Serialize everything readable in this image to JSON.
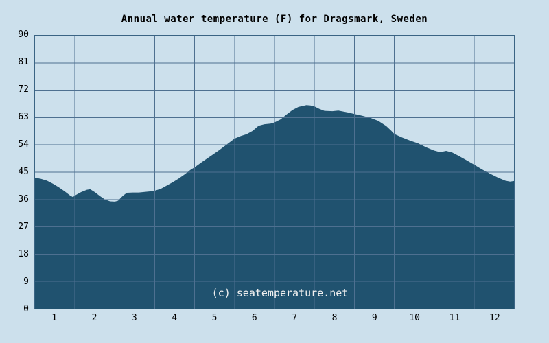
{
  "title": "Annual water temperature (F) for Dragsmark, Sweden",
  "watermark": "(c) seatemperature.net",
  "colors": {
    "background": "#cce0ec",
    "area_fill": "#20526f",
    "gridline": "#4e7090",
    "plot_border": "#3a6484",
    "text": "#000000",
    "watermark_text": "#f0f0f0"
  },
  "chart_data": {
    "type": "area",
    "title": "Annual water temperature (F) for Dragsmark, Sweden",
    "xlabel": "",
    "ylabel": "",
    "units": "F",
    "xlim": [
      0,
      12
    ],
    "ylim": [
      0,
      90
    ],
    "grid": true,
    "x_ticks": [
      1,
      2,
      3,
      4,
      5,
      6,
      7,
      8,
      9,
      10,
      11,
      12
    ],
    "y_ticks": [
      0,
      9,
      18,
      27,
      36,
      45,
      54,
      63,
      72,
      81,
      90
    ],
    "series_name": "Water temperature (F)",
    "points": [
      [
        0.0,
        43.2
      ],
      [
        0.15,
        42.8
      ],
      [
        0.3,
        42.2
      ],
      [
        0.45,
        41.2
      ],
      [
        0.6,
        40.0
      ],
      [
        0.75,
        38.6
      ],
      [
        0.88,
        37.3
      ],
      [
        0.95,
        36.8
      ],
      [
        1.0,
        37.3
      ],
      [
        1.15,
        38.4
      ],
      [
        1.3,
        39.2
      ],
      [
        1.38,
        39.4
      ],
      [
        1.5,
        38.4
      ],
      [
        1.62,
        37.2
      ],
      [
        1.75,
        36.0
      ],
      [
        1.88,
        35.4
      ],
      [
        2.0,
        35.3
      ],
      [
        2.08,
        35.6
      ],
      [
        2.2,
        37.2
      ],
      [
        2.3,
        38.2
      ],
      [
        2.45,
        38.3
      ],
      [
        2.6,
        38.3
      ],
      [
        2.75,
        38.5
      ],
      [
        2.9,
        38.7
      ],
      [
        3.0,
        38.9
      ],
      [
        3.15,
        39.5
      ],
      [
        3.3,
        40.6
      ],
      [
        3.45,
        41.7
      ],
      [
        3.6,
        42.9
      ],
      [
        3.75,
        44.3
      ],
      [
        3.9,
        45.8
      ],
      [
        4.0,
        46.6
      ],
      [
        4.2,
        48.5
      ],
      [
        4.4,
        50.3
      ],
      [
        4.6,
        52.1
      ],
      [
        4.8,
        54.1
      ],
      [
        5.0,
        56.1
      ],
      [
        5.15,
        56.9
      ],
      [
        5.3,
        57.5
      ],
      [
        5.45,
        58.6
      ],
      [
        5.6,
        60.3
      ],
      [
        5.75,
        60.8
      ],
      [
        5.9,
        61.0
      ],
      [
        6.0,
        61.4
      ],
      [
        6.15,
        62.4
      ],
      [
        6.3,
        64.0
      ],
      [
        6.45,
        65.5
      ],
      [
        6.6,
        66.5
      ],
      [
        6.8,
        67.1
      ],
      [
        6.9,
        67.0
      ],
      [
        7.0,
        66.7
      ],
      [
        7.12,
        65.9
      ],
      [
        7.25,
        65.2
      ],
      [
        7.45,
        65.1
      ],
      [
        7.6,
        65.3
      ],
      [
        7.8,
        64.8
      ],
      [
        8.0,
        64.2
      ],
      [
        8.2,
        63.6
      ],
      [
        8.4,
        62.9
      ],
      [
        8.6,
        61.9
      ],
      [
        8.8,
        60.2
      ],
      [
        8.93,
        58.6
      ],
      [
        9.0,
        57.6
      ],
      [
        9.2,
        56.4
      ],
      [
        9.4,
        55.4
      ],
      [
        9.6,
        54.5
      ],
      [
        9.8,
        53.2
      ],
      [
        10.0,
        52.1
      ],
      [
        10.15,
        51.6
      ],
      [
        10.3,
        52.0
      ],
      [
        10.45,
        51.5
      ],
      [
        10.6,
        50.5
      ],
      [
        10.8,
        49.0
      ],
      [
        11.0,
        47.5
      ],
      [
        11.2,
        45.9
      ],
      [
        11.4,
        44.5
      ],
      [
        11.6,
        43.2
      ],
      [
        11.78,
        42.2
      ],
      [
        11.9,
        41.9
      ],
      [
        12.0,
        42.1
      ]
    ]
  }
}
